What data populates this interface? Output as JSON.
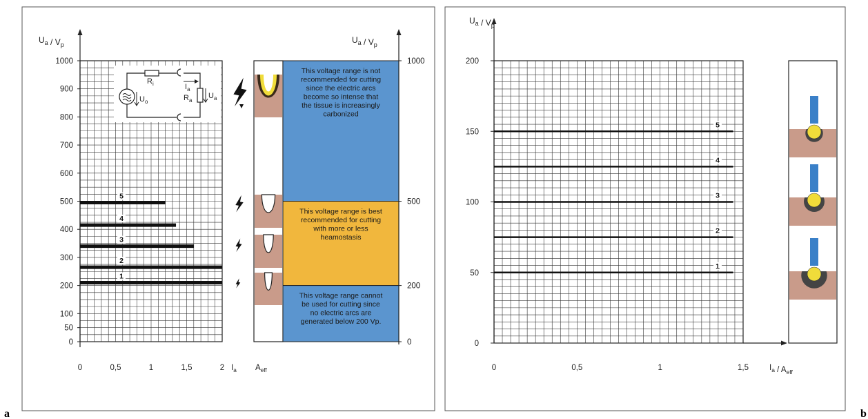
{
  "panel_a": {
    "label": "a",
    "y_axis_left": {
      "u": "U",
      "u_sub": "a",
      "sep": " / ",
      "v": "V",
      "v_sub": "p"
    },
    "y_axis_right": {
      "u": "U",
      "u_sub": "a",
      "sep": " / ",
      "v": "V",
      "v_sub": "p"
    },
    "y_ticks_left": [
      1000,
      900,
      800,
      700,
      600,
      500,
      400,
      300,
      200,
      100,
      50,
      0
    ],
    "y_ticks_right": [
      1000,
      500,
      200,
      0
    ],
    "x_ticks": [
      "0",
      "0,5",
      "1",
      "1,5",
      "2"
    ],
    "x_label": {
      "i": "I",
      "i_sub": "a",
      "a": "A",
      "a_sub": "eff"
    },
    "lines": [
      {
        "label": "1",
        "u": 210,
        "i": 2.0
      },
      {
        "label": "2",
        "u": 265,
        "i": 2.0
      },
      {
        "label": "3",
        "u": 340,
        "i": 1.6
      },
      {
        "label": "4",
        "u": 415,
        "i": 1.35
      },
      {
        "label": "5",
        "u": 495,
        "i": 1.2
      }
    ],
    "circuit": {
      "ri": "R",
      "ri_sub": "i",
      "ia": "I",
      "ia_sub": "a",
      "ra": "R",
      "ra_sub": "a",
      "ua": "U",
      "ua_sub": "a",
      "uo": "U",
      "uo_sub": "o"
    },
    "zones": [
      {
        "from": 500,
        "to": 1000,
        "color": "#5b95cf",
        "text": [
          "This voltage range is not",
          "recommended for cutting",
          "since the electric arcs",
          "become so intense that",
          "the tissue is increasingly",
          "carbonized"
        ]
      },
      {
        "from": 200,
        "to": 500,
        "color": "#f1b73d",
        "text": [
          "This voltage range is best",
          "recommended for cutting",
          "with more or less",
          "heamostasis"
        ]
      },
      {
        "from": 0,
        "to": 200,
        "color": "#5b95cf",
        "text": [
          "This voltage range cannot",
          "be used for cutting since",
          "no electric arcs are",
          "generated below 200 Vp."
        ]
      }
    ]
  },
  "panel_b": {
    "label": "b",
    "y_axis": {
      "u": "U",
      "u_sub": "a",
      "sep": " / ",
      "v": "V",
      "v_sub": "p"
    },
    "y_ticks": [
      200,
      150,
      100,
      50,
      0
    ],
    "x_ticks": [
      "0",
      "0,5",
      "1",
      "1,5"
    ],
    "x_label": {
      "i": "I",
      "i_sub": "a",
      "sep": " / ",
      "a": "A",
      "a_sub": "eff"
    },
    "lines": [
      {
        "label": "1",
        "u": 50,
        "i": 1.44
      },
      {
        "label": "2",
        "u": 75,
        "i": 1.44
      },
      {
        "label": "3",
        "u": 100,
        "i": 1.44
      },
      {
        "label": "4",
        "u": 125,
        "i": 1.44
      },
      {
        "label": "5",
        "u": 150,
        "i": 1.44
      }
    ]
  },
  "colors": {
    "tissue": "#c99b8a",
    "electrode": "#3a80c8",
    "ball": "#f0dc3a",
    "sheath": "#444444"
  }
}
